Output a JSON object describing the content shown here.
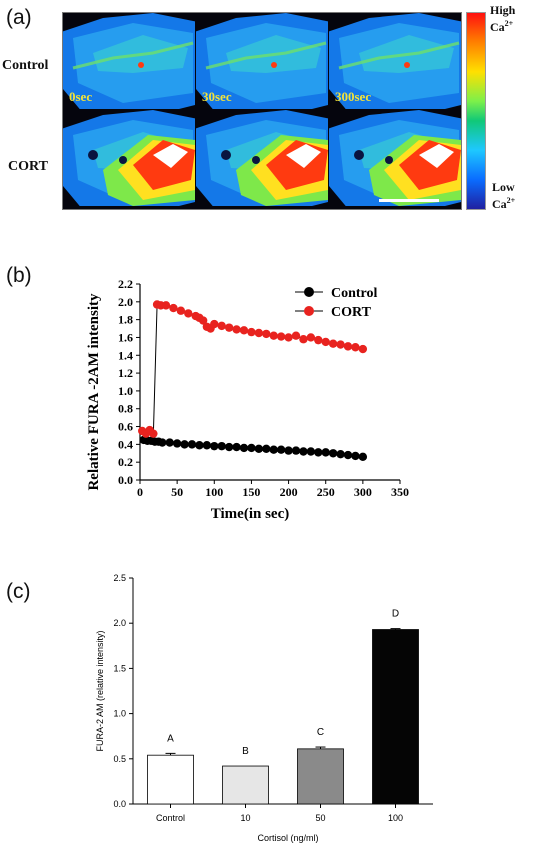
{
  "panel_a": {
    "letter": "(a)",
    "row_labels": [
      "Control",
      "CORT"
    ],
    "time_labels": [
      "0sec",
      "30sec",
      "300sec"
    ],
    "colorbar": {
      "high_label": "High",
      "high_sub": "Ca",
      "low_label": "Low",
      "low_sub": "Ca",
      "superscript": "2+"
    }
  },
  "panel_b": {
    "letter": "(b)"
  },
  "panel_c": {
    "letter": "(c)"
  },
  "chart_data": [
    {
      "type": "line",
      "xlabel": "Time(in sec)",
      "ylabel": "Relative FURA -2AM intensity",
      "xlim": [
        0,
        350
      ],
      "ylim": [
        0,
        2.2
      ],
      "xticks": [
        0,
        50,
        100,
        150,
        200,
        250,
        300,
        350
      ],
      "yticks": [
        0.0,
        0.2,
        0.4,
        0.6,
        0.8,
        1.0,
        1.2,
        1.4,
        1.6,
        1.8,
        2.0,
        2.2
      ],
      "legend_position": "top-right",
      "series": [
        {
          "name": "Control",
          "color": "#000000",
          "x": [
            5,
            10,
            15,
            20,
            25,
            30,
            40,
            50,
            60,
            70,
            80,
            90,
            100,
            110,
            120,
            130,
            140,
            150,
            160,
            170,
            180,
            190,
            200,
            210,
            220,
            230,
            240,
            250,
            260,
            270,
            280,
            290,
            300
          ],
          "y": [
            0.45,
            0.44,
            0.44,
            0.43,
            0.43,
            0.42,
            0.42,
            0.41,
            0.4,
            0.4,
            0.39,
            0.39,
            0.38,
            0.38,
            0.37,
            0.37,
            0.36,
            0.36,
            0.35,
            0.35,
            0.34,
            0.34,
            0.33,
            0.33,
            0.32,
            0.32,
            0.31,
            0.31,
            0.3,
            0.29,
            0.28,
            0.27,
            0.26
          ]
        },
        {
          "name": "CORT",
          "color": "#e8231f",
          "x": [
            3,
            8,
            13,
            18,
            23,
            28,
            35,
            45,
            55,
            65,
            75,
            80,
            85,
            90,
            95,
            100,
            110,
            120,
            130,
            140,
            150,
            160,
            170,
            180,
            190,
            200,
            210,
            220,
            230,
            240,
            250,
            260,
            270,
            280,
            290,
            300
          ],
          "y": [
            0.55,
            0.52,
            0.56,
            0.52,
            1.97,
            1.96,
            1.96,
            1.93,
            1.9,
            1.87,
            1.84,
            1.82,
            1.79,
            1.72,
            1.7,
            1.75,
            1.73,
            1.71,
            1.69,
            1.68,
            1.66,
            1.65,
            1.64,
            1.62,
            1.61,
            1.6,
            1.62,
            1.58,
            1.6,
            1.57,
            1.55,
            1.53,
            1.52,
            1.5,
            1.49,
            1.47
          ]
        }
      ]
    },
    {
      "type": "bar",
      "categories": [
        "Control",
        "10",
        "50",
        "100"
      ],
      "values": [
        0.54,
        0.42,
        0.61,
        1.93
      ],
      "errors": [
        0.02,
        0.0,
        0.02,
        0.01
      ],
      "letters": [
        "A",
        "B",
        "C",
        "D"
      ],
      "colors": [
        "#ffffff",
        "#e6e6e6",
        "#8a8a8a",
        "#050505"
      ],
      "xlabel": "Cortisol (ng/ml)",
      "ylabel": "FURA-2 AM (relative intensity)",
      "ylim": [
        0,
        2.5
      ],
      "yticks": [
        "0.0",
        "0.5",
        "1.0",
        "1.5",
        "2.0",
        "2.5"
      ]
    }
  ]
}
